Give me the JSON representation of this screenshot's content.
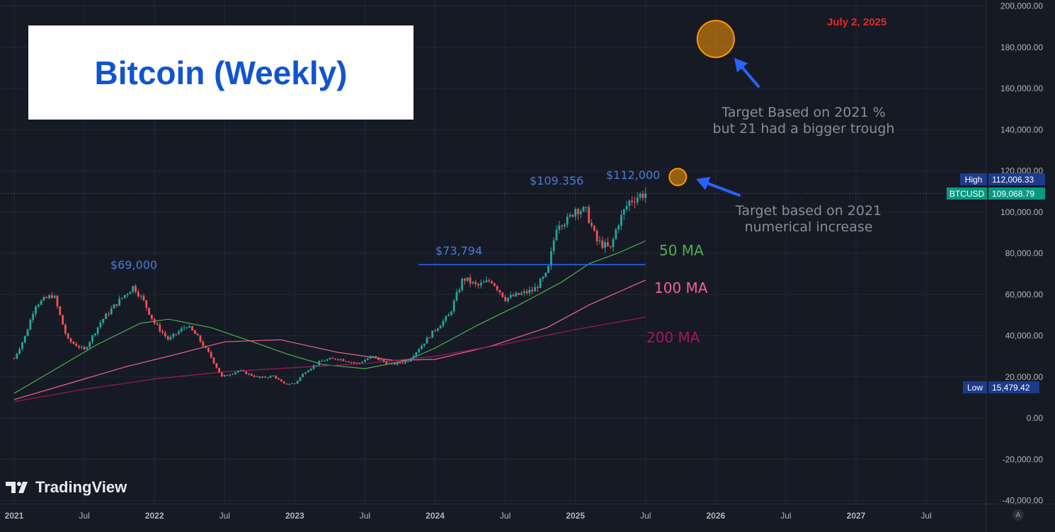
{
  "title": "Bitcoin (Weekly)",
  "date_label": "July 2, 2025",
  "branding": "TradingView",
  "annotations": {
    "high_2021": "$69,000",
    "peak_2024": "$73,794",
    "peak_2025a": "$109.356",
    "peak_2025b": "$112,000",
    "target_pct_line1": "Target Based on 2021 %",
    "target_pct_line2": "but 21 had a bigger trough",
    "target_num_line1": "Target based on 2021",
    "target_num_line2": "numerical increase",
    "ma50": "50 MA",
    "ma100": "100 MA",
    "ma200": "200 MA"
  },
  "price_tags": {
    "high_label": "High",
    "high_value": "112,006.33",
    "symbol": "BTCUSD",
    "last_value": "109,068.79",
    "low_label": "Low",
    "low_value": "15,479.42"
  },
  "badge": "A",
  "colors": {
    "background": "#161a25",
    "grid": "#232734",
    "up": "#26a69a",
    "down": "#ef5350",
    "ma50": "#4caf50",
    "ma100": "#f06292",
    "ma200": "#a3185f",
    "resistance": "#2962ff",
    "target": "#ff9800",
    "arrow": "#2962ff",
    "annotation_blue": "#4a7bd6",
    "high_tag": "#1e3a8a",
    "last_tag": "#089981"
  },
  "chart_data": {
    "type": "candlestick",
    "title": "Bitcoin (Weekly)",
    "y_axis": {
      "ticks": [
        "200,000.00",
        "180,000.00",
        "160,000.00",
        "140,000.00",
        "120,000.00",
        "100,000.00",
        "80,000.00",
        "60,000.00",
        "40,000.00",
        "20,000.00",
        "0.00",
        "-20,000.00",
        "-40,000.00"
      ],
      "tick_values": [
        200000,
        180000,
        160000,
        140000,
        120000,
        100000,
        80000,
        60000,
        40000,
        20000,
        0,
        -20000,
        -40000
      ],
      "range": [
        -40000,
        200000
      ]
    },
    "x_axis": {
      "ticks": [
        "2021",
        "Jul",
        "2022",
        "Jul",
        "2023",
        "Jul",
        "2024",
        "Jul",
        "2025",
        "Jul",
        "2026",
        "Jul",
        "2027",
        "Jul"
      ],
      "tick_dates": [
        2021.0,
        2021.5,
        2022.0,
        2022.5,
        2023.0,
        2023.5,
        2024.0,
        2024.5,
        2025.0,
        2025.5,
        2026.0,
        2026.5,
        2027.0,
        2027.5
      ]
    },
    "grid": true,
    "last_price": 109068.79,
    "high": 112006.33,
    "low": 15479.42,
    "price_path": [
      [
        2021.0,
        29000
      ],
      [
        2021.08,
        40000
      ],
      [
        2021.15,
        55000
      ],
      [
        2021.28,
        60000
      ],
      [
        2021.38,
        38000
      ],
      [
        2021.5,
        33000
      ],
      [
        2021.62,
        47000
      ],
      [
        2021.72,
        55000
      ],
      [
        2021.85,
        64000
      ],
      [
        2021.92,
        57000
      ],
      [
        2022.0,
        46000
      ],
      [
        2022.1,
        38000
      ],
      [
        2022.23,
        45000
      ],
      [
        2022.3,
        40000
      ],
      [
        2022.4,
        30000
      ],
      [
        2022.48,
        20000
      ],
      [
        2022.6,
        23000
      ],
      [
        2022.75,
        19500
      ],
      [
        2022.85,
        20500
      ],
      [
        2022.92,
        16500
      ],
      [
        2023.0,
        16800
      ],
      [
        2023.08,
        23000
      ],
      [
        2023.2,
        28000
      ],
      [
        2023.3,
        29000
      ],
      [
        2023.45,
        26500
      ],
      [
        2023.55,
        30000
      ],
      [
        2023.68,
        26000
      ],
      [
        2023.8,
        27500
      ],
      [
        2023.9,
        35000
      ],
      [
        2024.0,
        43000
      ],
      [
        2024.1,
        50000
      ],
      [
        2024.2,
        68000
      ],
      [
        2024.3,
        64000
      ],
      [
        2024.4,
        67000
      ],
      [
        2024.5,
        58000
      ],
      [
        2024.6,
        60000
      ],
      [
        2024.7,
        62000
      ],
      [
        2024.8,
        70000
      ],
      [
        2024.87,
        95000
      ],
      [
        2024.95,
        96000
      ],
      [
        2025.0,
        102000
      ],
      [
        2025.08,
        100000
      ],
      [
        2025.15,
        86000
      ],
      [
        2025.25,
        82000
      ],
      [
        2025.3,
        94000
      ],
      [
        2025.38,
        105000
      ],
      [
        2025.45,
        108000
      ],
      [
        2025.5,
        109068.79
      ]
    ],
    "series": [
      {
        "name": "50 MA",
        "points": [
          [
            2021.0,
            12000
          ],
          [
            2021.3,
            24000
          ],
          [
            2021.6,
            36000
          ],
          [
            2021.9,
            46000
          ],
          [
            2022.1,
            48000
          ],
          [
            2022.4,
            44000
          ],
          [
            2022.7,
            37000
          ],
          [
            2022.95,
            31000
          ],
          [
            2023.2,
            26000
          ],
          [
            2023.5,
            24000
          ],
          [
            2023.8,
            28000
          ],
          [
            2024.0,
            34000
          ],
          [
            2024.3,
            45000
          ],
          [
            2024.6,
            55000
          ],
          [
            2024.9,
            66000
          ],
          [
            2025.1,
            75000
          ],
          [
            2025.3,
            80000
          ],
          [
            2025.5,
            86000
          ]
        ]
      },
      {
        "name": "100 MA",
        "points": [
          [
            2021.0,
            9000
          ],
          [
            2021.4,
            17000
          ],
          [
            2021.8,
            25000
          ],
          [
            2022.1,
            30000
          ],
          [
            2022.5,
            37000
          ],
          [
            2022.9,
            38000
          ],
          [
            2023.3,
            32000
          ],
          [
            2023.7,
            28000
          ],
          [
            2024.0,
            28500
          ],
          [
            2024.4,
            35000
          ],
          [
            2024.8,
            44000
          ],
          [
            2025.1,
            55000
          ],
          [
            2025.5,
            67000
          ]
        ]
      },
      {
        "name": "200 MA",
        "points": [
          [
            2021.0,
            8000
          ],
          [
            2021.5,
            14000
          ],
          [
            2022.0,
            19000
          ],
          [
            2022.5,
            22500
          ],
          [
            2023.0,
            24500
          ],
          [
            2023.5,
            26500
          ],
          [
            2024.0,
            30000
          ],
          [
            2024.5,
            36000
          ],
          [
            2025.0,
            43000
          ],
          [
            2025.5,
            49000
          ]
        ]
      }
    ],
    "resistance": {
      "value": 74500,
      "x_start": 2023.88,
      "x_end": 2025.5
    },
    "targets": [
      {
        "label": "Target based on 2021 numerical increase",
        "x": 2025.73,
        "y": 117000
      },
      {
        "label": "Target Based on 2021 % but 21 had a bigger trough",
        "x": 2026.0,
        "y": 184000
      }
    ]
  }
}
